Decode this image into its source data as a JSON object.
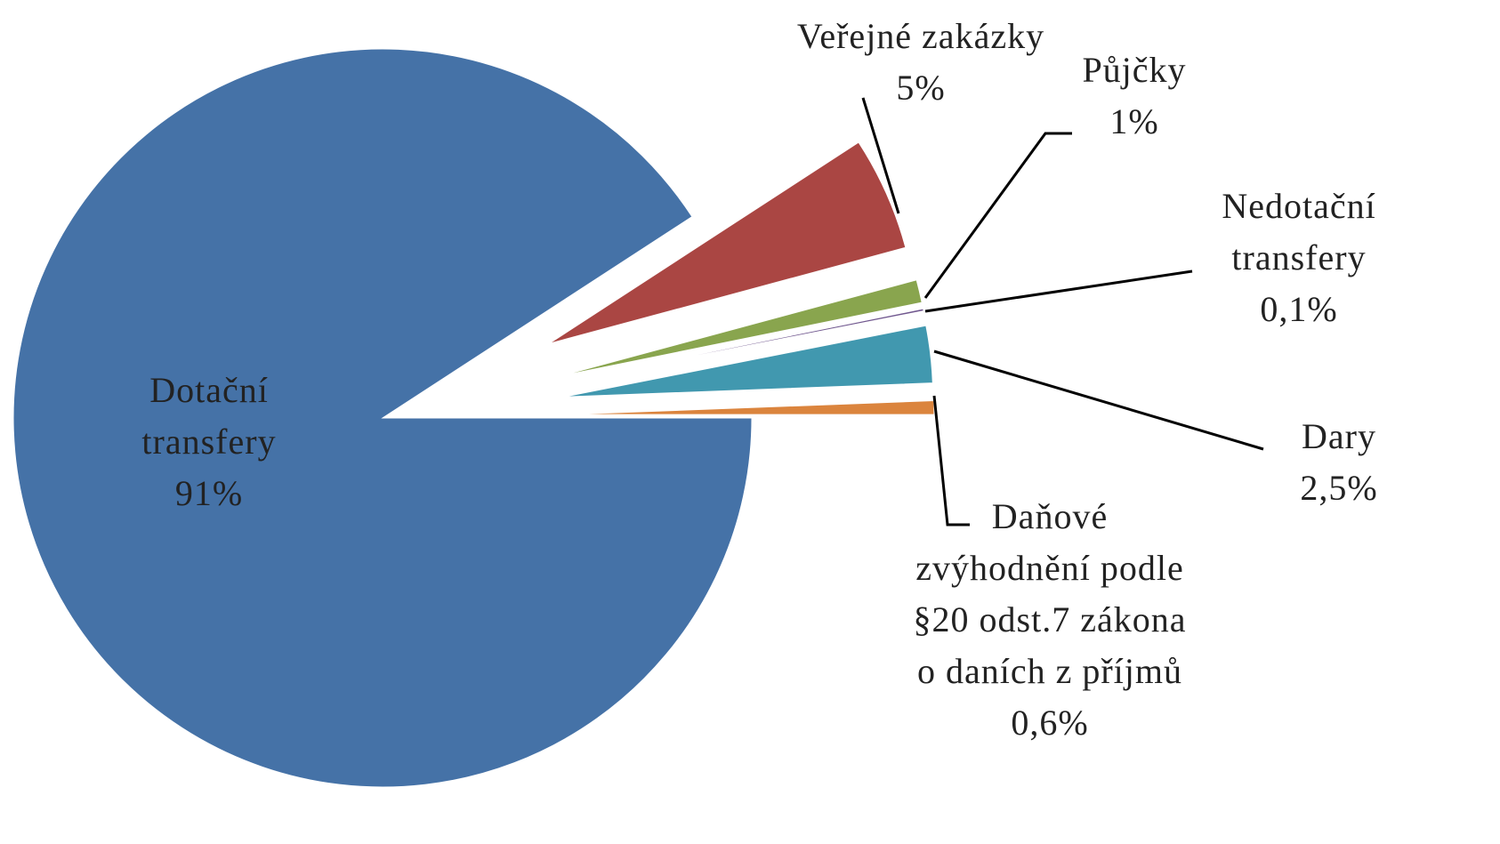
{
  "chart_data": {
    "type": "pie",
    "categories": [
      "Dotační\ntransfery",
      "Veřejné zakázky",
      "Půjčky",
      "Nedotační\ntransfery",
      "Dary",
      "Daňové\nzvýhodnění podle\n§20 odst.7 zákona\no daních z příjmů"
    ],
    "values": [
      91,
      5,
      1,
      0.1,
      2.5,
      0.6
    ],
    "value_labels": [
      "91%",
      "5%",
      "1%",
      "0,1%",
      "2,5%",
      "0,6%"
    ],
    "colors": [
      "#4572a7",
      "#aa4643",
      "#89a54e",
      "#71588f",
      "#4198af",
      "#db843d"
    ],
    "exploded": [
      false,
      true,
      true,
      true,
      true,
      true
    ]
  }
}
